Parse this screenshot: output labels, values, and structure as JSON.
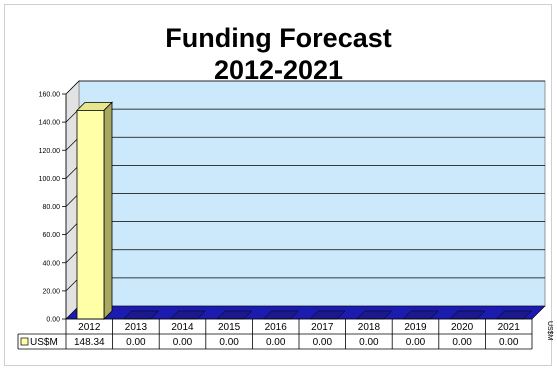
{
  "chart_data": {
    "type": "bar",
    "title": "Funding Forecast",
    "subtitle": "2012-2021",
    "categories": [
      "2012",
      "2013",
      "2014",
      "2015",
      "2016",
      "2017",
      "2018",
      "2019",
      "2020",
      "2021"
    ],
    "series": [
      {
        "name": "US$M",
        "values": [
          148.34,
          0,
          0,
          0,
          0,
          0,
          0,
          0,
          0,
          0
        ]
      }
    ],
    "table_values": [
      "148.34",
      "0.00",
      "0.00",
      "0.00",
      "0.00",
      "0.00",
      "0.00",
      "0.00",
      "0.00",
      "0.00"
    ],
    "yticks": [
      "0.00",
      "20.00",
      "40.00",
      "60.00",
      "80.00",
      "100.00",
      "120.00",
      "140.00",
      "160.00"
    ],
    "ylim": [
      0,
      160
    ],
    "ylabel": "US$M",
    "xlabel": "",
    "grid": true,
    "legend": "data-table",
    "colors": {
      "bar_front": "#ffffa8",
      "bar_side": "#a8a860",
      "bar_top": "#e6e690",
      "plot_back": "#cce8fb",
      "floor": "#1b1bb0",
      "zero_bar": "#1a1a8c"
    }
  }
}
